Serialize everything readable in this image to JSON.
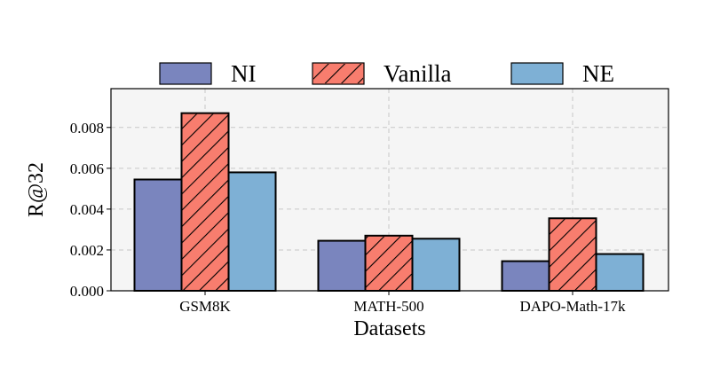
{
  "chart_data": {
    "type": "bar",
    "xlabel": "Datasets",
    "ylabel": "R@32",
    "categories": [
      "GSM8K",
      "MATH-500",
      "DAPO-Math-17k"
    ],
    "ylim": [
      0,
      0.0099
    ],
    "yticks": [
      0.0,
      0.002,
      0.004,
      0.006,
      0.008
    ],
    "ytick_labels": [
      "0.000",
      "0.002",
      "0.004",
      "0.006",
      "0.008"
    ],
    "grid": true,
    "legend_position": "top",
    "series": [
      {
        "name": "NI",
        "values": [
          0.00545,
          0.00245,
          0.00145
        ],
        "color": "#7a85be",
        "hatch": false
      },
      {
        "name": "Vanilla",
        "values": [
          0.0087,
          0.0027,
          0.00355
        ],
        "color": "#f87d6e",
        "hatch": true
      },
      {
        "name": "NE",
        "values": [
          0.0058,
          0.00255,
          0.0018
        ],
        "color": "#7eb0d5",
        "hatch": false
      }
    ]
  }
}
